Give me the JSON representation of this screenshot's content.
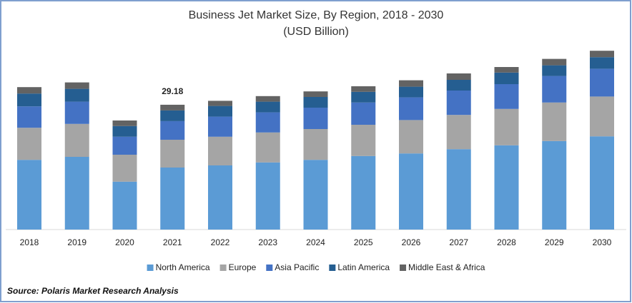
{
  "chart_data": {
    "type": "stacked_bar",
    "title": "Business Jet Market Size, By Region, 2018 - 2030",
    "subtitle": "(USD Billion)",
    "source": "Source: Polaris Market Research Analysis",
    "categories": [
      "2018",
      "2019",
      "2020",
      "2021",
      "2022",
      "2023",
      "2024",
      "2025",
      "2026",
      "2027",
      "2028",
      "2029",
      "2030"
    ],
    "series": [
      {
        "name": "North America",
        "color": "#5b9bd5",
        "values": [
          16.3,
          17.0,
          11.2,
          14.5,
          15.0,
          15.7,
          16.3,
          17.2,
          17.8,
          18.8,
          19.7,
          20.7,
          21.8
        ]
      },
      {
        "name": "Europe",
        "color": "#a5a5a5",
        "values": [
          7.5,
          7.7,
          6.3,
          6.5,
          6.7,
          7.0,
          7.2,
          7.3,
          7.8,
          8.0,
          8.5,
          9.0,
          9.3
        ]
      },
      {
        "name": "Asia Pacific",
        "color": "#4472c4",
        "values": [
          5.0,
          5.2,
          4.2,
          4.35,
          4.7,
          4.7,
          5.0,
          5.2,
          5.3,
          5.7,
          5.8,
          6.2,
          6.5
        ]
      },
      {
        "name": "Latin America",
        "color": "#255e91",
        "values": [
          3.0,
          3.0,
          2.5,
          2.5,
          2.5,
          2.5,
          2.5,
          2.5,
          2.5,
          2.5,
          2.7,
          2.5,
          2.7
        ]
      },
      {
        "name": "Middle East & Africa",
        "color": "#636363",
        "values": [
          1.5,
          1.5,
          1.3,
          1.33,
          1.2,
          1.3,
          1.3,
          1.3,
          1.5,
          1.5,
          1.3,
          1.5,
          1.5
        ]
      }
    ],
    "annotations": [
      {
        "label": "29.18",
        "category": "2021"
      }
    ],
    "legend": "bottom"
  }
}
